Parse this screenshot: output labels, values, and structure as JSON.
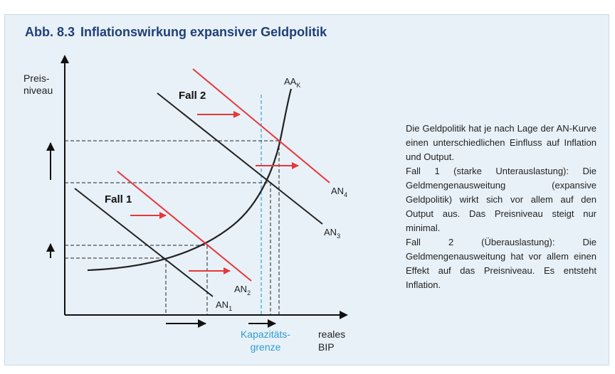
{
  "figure": {
    "number": "Abb. 8.3",
    "title": "Inflationswirkung expansiver Geldpolitik"
  },
  "diagram": {
    "y_axis_label": [
      "Preis-",
      "niveau"
    ],
    "x_axis_label": [
      "reales",
      "BIP"
    ],
    "capacity_label": [
      "Kapazitäts-",
      "grenze"
    ],
    "case_labels": {
      "fall1": "Fall 1",
      "fall2": "Fall 2"
    },
    "curves": {
      "aa_k": {
        "main": "AA",
        "sub": "K"
      },
      "an_1": {
        "main": "AN",
        "sub": "1"
      },
      "an_2": {
        "main": "AN",
        "sub": "2"
      },
      "an_3": {
        "main": "AN",
        "sub": "3"
      },
      "an_4": {
        "main": "AN",
        "sub": "4"
      }
    },
    "colors": {
      "curve": "#222222",
      "shift_curve": "#e8363a",
      "capacity_line": "#33a3dc",
      "capacity_text": "#2f9bd6",
      "title": "#1f3f78",
      "panel_background": "#e8f1f8"
    }
  },
  "description": [
    "Die Geldpolitik hat je nach Lage der AN-Kurve einen unterschiedlichen Einfluss auf Inflation und Output.",
    "Fall 1 (starke Unterauslastung): Die Geldmengenausweitung (expansive Geldpolitik) wirkt sich vor allem auf den Output aus. Das Preisniveau steigt nur minimal.",
    "Fall 2 (Überauslastung): Die Geldmengenausweitung hat vor allem einen Effekt auf das Preisniveau. Es entsteht Inflation."
  ]
}
